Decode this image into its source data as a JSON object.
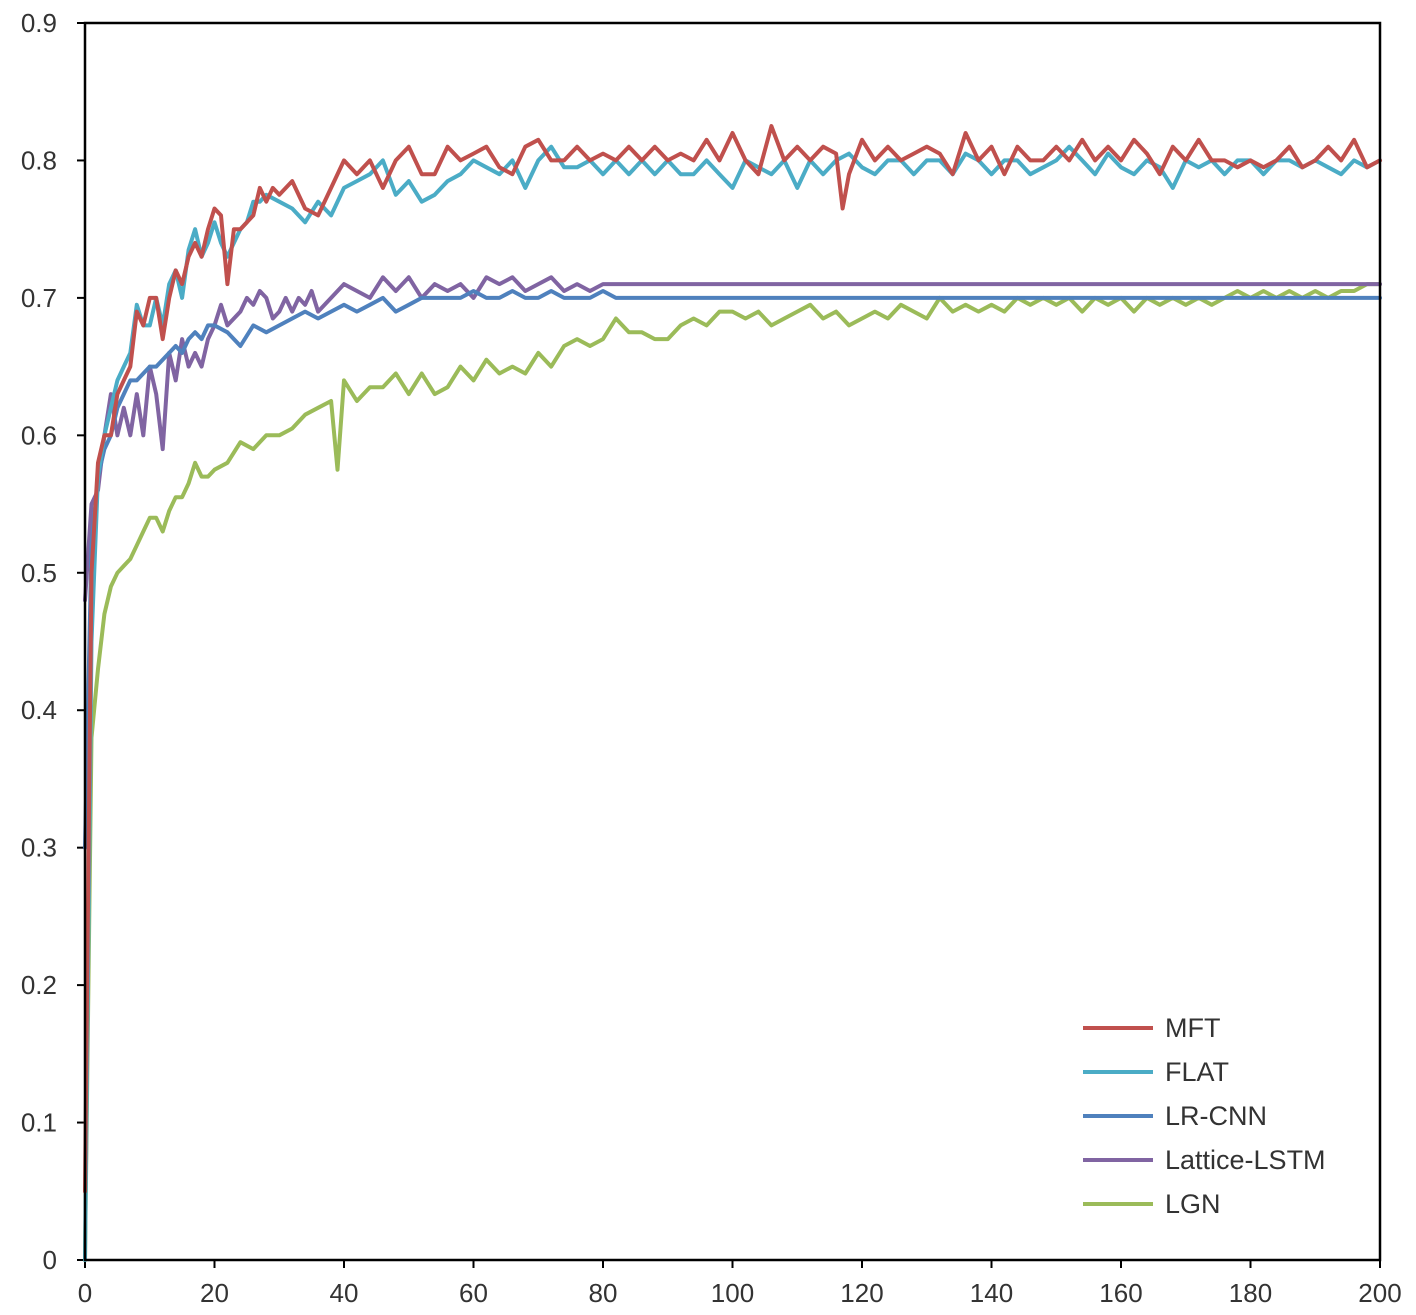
{
  "chart_data": {
    "type": "line",
    "title": "",
    "xlabel": "",
    "ylabel": "",
    "xlim": [
      0,
      200
    ],
    "ylim": [
      0,
      0.9
    ],
    "xticks": [
      "0",
      "20",
      "40",
      "60",
      "80",
      "100",
      "120",
      "140",
      "160",
      "180",
      "200"
    ],
    "yticks": [
      "0",
      "0.1",
      "0.2",
      "0.3",
      "0.4",
      "0.5",
      "0.6",
      "0.7",
      "0.8",
      "0.9"
    ],
    "grid": false,
    "legend_position": "bottom-right",
    "series": [
      {
        "name": "MFT",
        "color": "#c0504d",
        "x": [
          0,
          1,
          2,
          3,
          4,
          5,
          6,
          7,
          8,
          9,
          10,
          11,
          12,
          13,
          14,
          15,
          16,
          17,
          18,
          19,
          20,
          21,
          22,
          23,
          24,
          25,
          26,
          27,
          28,
          29,
          30,
          32,
          34,
          36,
          38,
          40,
          42,
          44,
          46,
          48,
          50,
          52,
          54,
          56,
          58,
          60,
          62,
          64,
          66,
          68,
          70,
          72,
          74,
          76,
          78,
          80,
          82,
          84,
          86,
          88,
          90,
          92,
          94,
          96,
          98,
          100,
          102,
          104,
          106,
          108,
          110,
          112,
          114,
          116,
          117,
          118,
          120,
          122,
          124,
          126,
          128,
          130,
          132,
          134,
          136,
          138,
          140,
          142,
          144,
          146,
          148,
          150,
          152,
          154,
          156,
          158,
          160,
          162,
          164,
          166,
          168,
          170,
          172,
          174,
          176,
          178,
          180,
          182,
          184,
          186,
          188,
          190,
          192,
          194,
          196,
          198,
          200
        ],
        "values": [
          0.05,
          0.5,
          0.58,
          0.6,
          0.6,
          0.63,
          0.64,
          0.65,
          0.69,
          0.68,
          0.7,
          0.7,
          0.67,
          0.7,
          0.72,
          0.71,
          0.73,
          0.74,
          0.73,
          0.75,
          0.765,
          0.76,
          0.71,
          0.75,
          0.75,
          0.755,
          0.76,
          0.78,
          0.77,
          0.78,
          0.775,
          0.785,
          0.765,
          0.76,
          0.78,
          0.8,
          0.79,
          0.8,
          0.78,
          0.8,
          0.81,
          0.79,
          0.79,
          0.81,
          0.8,
          0.805,
          0.81,
          0.795,
          0.79,
          0.81,
          0.815,
          0.8,
          0.8,
          0.81,
          0.8,
          0.805,
          0.8,
          0.81,
          0.8,
          0.81,
          0.8,
          0.805,
          0.8,
          0.815,
          0.8,
          0.82,
          0.8,
          0.79,
          0.825,
          0.8,
          0.81,
          0.8,
          0.81,
          0.805,
          0.765,
          0.79,
          0.815,
          0.8,
          0.81,
          0.8,
          0.805,
          0.81,
          0.805,
          0.79,
          0.82,
          0.8,
          0.81,
          0.79,
          0.81,
          0.8,
          0.8,
          0.81,
          0.8,
          0.815,
          0.8,
          0.81,
          0.8,
          0.815,
          0.805,
          0.79,
          0.81,
          0.8,
          0.815,
          0.8,
          0.8,
          0.795,
          0.8,
          0.795,
          0.8,
          0.81,
          0.795,
          0.8,
          0.81,
          0.8,
          0.815,
          0.795,
          0.8
        ]
      },
      {
        "name": "FLAT",
        "color": "#4bacc6",
        "x": [
          0,
          1,
          2,
          3,
          4,
          5,
          6,
          7,
          8,
          9,
          10,
          11,
          12,
          13,
          14,
          15,
          16,
          17,
          18,
          19,
          20,
          21,
          22,
          23,
          24,
          25,
          26,
          27,
          28,
          30,
          32,
          34,
          36,
          38,
          40,
          42,
          44,
          46,
          48,
          50,
          52,
          54,
          56,
          58,
          60,
          62,
          64,
          66,
          68,
          70,
          72,
          74,
          76,
          78,
          80,
          82,
          84,
          86,
          88,
          90,
          92,
          94,
          96,
          98,
          100,
          102,
          104,
          106,
          108,
          110,
          112,
          114,
          116,
          118,
          120,
          122,
          124,
          126,
          128,
          130,
          132,
          134,
          136,
          138,
          140,
          142,
          144,
          146,
          148,
          150,
          152,
          154,
          156,
          158,
          160,
          162,
          164,
          166,
          168,
          170,
          172,
          174,
          176,
          178,
          180,
          182,
          184,
          186,
          188,
          190,
          192,
          194,
          196,
          198,
          200
        ],
        "values": [
          0.0,
          0.45,
          0.57,
          0.6,
          0.62,
          0.64,
          0.65,
          0.66,
          0.695,
          0.68,
          0.68,
          0.7,
          0.68,
          0.71,
          0.72,
          0.7,
          0.735,
          0.75,
          0.73,
          0.74,
          0.755,
          0.74,
          0.73,
          0.74,
          0.75,
          0.755,
          0.77,
          0.77,
          0.775,
          0.77,
          0.765,
          0.755,
          0.77,
          0.76,
          0.78,
          0.785,
          0.79,
          0.8,
          0.775,
          0.785,
          0.77,
          0.775,
          0.785,
          0.79,
          0.8,
          0.795,
          0.79,
          0.8,
          0.78,
          0.8,
          0.81,
          0.795,
          0.795,
          0.8,
          0.79,
          0.8,
          0.79,
          0.8,
          0.79,
          0.8,
          0.79,
          0.79,
          0.8,
          0.79,
          0.78,
          0.8,
          0.795,
          0.79,
          0.8,
          0.78,
          0.8,
          0.79,
          0.8,
          0.805,
          0.795,
          0.79,
          0.8,
          0.8,
          0.79,
          0.8,
          0.8,
          0.79,
          0.805,
          0.8,
          0.79,
          0.8,
          0.8,
          0.79,
          0.795,
          0.8,
          0.81,
          0.8,
          0.79,
          0.805,
          0.795,
          0.79,
          0.8,
          0.795,
          0.78,
          0.8,
          0.795,
          0.8,
          0.79,
          0.8,
          0.8,
          0.79,
          0.8,
          0.8,
          0.795,
          0.8,
          0.795,
          0.79,
          0.8,
          0.795,
          0.8
        ]
      },
      {
        "name": "LR-CNN",
        "color": "#4f81bd",
        "x": [
          0,
          1,
          2,
          3,
          4,
          5,
          6,
          7,
          8,
          9,
          10,
          11,
          12,
          13,
          14,
          15,
          16,
          17,
          18,
          19,
          20,
          22,
          24,
          26,
          28,
          30,
          32,
          34,
          36,
          38,
          40,
          42,
          44,
          46,
          48,
          50,
          52,
          54,
          56,
          58,
          60,
          62,
          64,
          66,
          68,
          70,
          72,
          74,
          76,
          78,
          80,
          82,
          84,
          86,
          88,
          90,
          95,
          100,
          105,
          110,
          120,
          130,
          140,
          150,
          160,
          170,
          180,
          190,
          200
        ],
        "values": [
          0.3,
          0.52,
          0.57,
          0.59,
          0.6,
          0.62,
          0.63,
          0.64,
          0.64,
          0.645,
          0.65,
          0.65,
          0.655,
          0.66,
          0.665,
          0.66,
          0.67,
          0.675,
          0.67,
          0.68,
          0.68,
          0.675,
          0.665,
          0.68,
          0.675,
          0.68,
          0.685,
          0.69,
          0.685,
          0.69,
          0.695,
          0.69,
          0.695,
          0.7,
          0.69,
          0.695,
          0.7,
          0.7,
          0.7,
          0.7,
          0.705,
          0.7,
          0.7,
          0.705,
          0.7,
          0.7,
          0.705,
          0.7,
          0.7,
          0.7,
          0.705,
          0.7,
          0.7,
          0.7,
          0.7,
          0.7,
          0.7,
          0.7,
          0.7,
          0.7,
          0.7,
          0.7,
          0.7,
          0.7,
          0.7,
          0.7,
          0.7,
          0.7,
          0.7
        ]
      },
      {
        "name": "Lattice-LSTM",
        "color": "#8064a2",
        "x": [
          0,
          1,
          2,
          3,
          4,
          5,
          6,
          7,
          8,
          9,
          10,
          11,
          12,
          13,
          14,
          15,
          16,
          17,
          18,
          19,
          20,
          21,
          22,
          23,
          24,
          25,
          26,
          27,
          28,
          29,
          30,
          31,
          32,
          33,
          34,
          35,
          36,
          38,
          40,
          42,
          44,
          46,
          48,
          50,
          52,
          54,
          56,
          58,
          60,
          62,
          64,
          66,
          68,
          70,
          72,
          74,
          76,
          78,
          80,
          82,
          84,
          86,
          88,
          90,
          95,
          100,
          110,
          120,
          130,
          140,
          150,
          160,
          170,
          180,
          190,
          200
        ],
        "values": [
          0.48,
          0.55,
          0.56,
          0.6,
          0.63,
          0.6,
          0.62,
          0.6,
          0.63,
          0.6,
          0.65,
          0.63,
          0.59,
          0.66,
          0.64,
          0.67,
          0.65,
          0.66,
          0.65,
          0.67,
          0.68,
          0.695,
          0.68,
          0.685,
          0.69,
          0.7,
          0.695,
          0.705,
          0.7,
          0.685,
          0.69,
          0.7,
          0.69,
          0.7,
          0.695,
          0.705,
          0.69,
          0.7,
          0.71,
          0.705,
          0.7,
          0.715,
          0.705,
          0.715,
          0.7,
          0.71,
          0.705,
          0.71,
          0.7,
          0.715,
          0.71,
          0.715,
          0.705,
          0.71,
          0.715,
          0.705,
          0.71,
          0.705,
          0.71,
          0.71,
          0.71,
          0.71,
          0.71,
          0.71,
          0.71,
          0.71,
          0.71,
          0.71,
          0.71,
          0.71,
          0.71,
          0.71,
          0.71,
          0.71,
          0.71,
          0.71
        ]
      },
      {
        "name": "LGN",
        "color": "#9bbb59",
        "x": [
          0,
          1,
          2,
          3,
          4,
          5,
          6,
          7,
          8,
          9,
          10,
          11,
          12,
          13,
          14,
          15,
          16,
          17,
          18,
          19,
          20,
          22,
          24,
          26,
          28,
          30,
          32,
          34,
          36,
          38,
          39,
          40,
          42,
          44,
          46,
          48,
          50,
          52,
          54,
          56,
          58,
          60,
          62,
          64,
          66,
          68,
          70,
          72,
          74,
          76,
          78,
          80,
          82,
          84,
          86,
          88,
          90,
          92,
          94,
          96,
          98,
          100,
          102,
          104,
          106,
          108,
          110,
          112,
          114,
          116,
          118,
          120,
          122,
          124,
          126,
          128,
          130,
          132,
          134,
          136,
          138,
          140,
          142,
          144,
          146,
          148,
          150,
          152,
          154,
          156,
          158,
          160,
          162,
          164,
          166,
          168,
          170,
          172,
          174,
          176,
          178,
          180,
          182,
          184,
          186,
          188,
          190,
          192,
          194,
          196,
          198,
          200
        ],
        "values": [
          0.0,
          0.38,
          0.43,
          0.47,
          0.49,
          0.5,
          0.505,
          0.51,
          0.52,
          0.53,
          0.54,
          0.54,
          0.53,
          0.545,
          0.555,
          0.555,
          0.565,
          0.58,
          0.57,
          0.57,
          0.575,
          0.58,
          0.595,
          0.59,
          0.6,
          0.6,
          0.605,
          0.615,
          0.62,
          0.625,
          0.575,
          0.64,
          0.625,
          0.635,
          0.635,
          0.645,
          0.63,
          0.645,
          0.63,
          0.635,
          0.65,
          0.64,
          0.655,
          0.645,
          0.65,
          0.645,
          0.66,
          0.65,
          0.665,
          0.67,
          0.665,
          0.67,
          0.685,
          0.675,
          0.675,
          0.67,
          0.67,
          0.68,
          0.685,
          0.68,
          0.69,
          0.69,
          0.685,
          0.69,
          0.68,
          0.685,
          0.69,
          0.695,
          0.685,
          0.69,
          0.68,
          0.685,
          0.69,
          0.685,
          0.695,
          0.69,
          0.685,
          0.7,
          0.69,
          0.695,
          0.69,
          0.695,
          0.69,
          0.7,
          0.695,
          0.7,
          0.695,
          0.7,
          0.69,
          0.7,
          0.695,
          0.7,
          0.69,
          0.7,
          0.695,
          0.7,
          0.695,
          0.7,
          0.695,
          0.7,
          0.705,
          0.7,
          0.705,
          0.7,
          0.705,
          0.7,
          0.705,
          0.7,
          0.705,
          0.705,
          0.71,
          0.71
        ]
      }
    ]
  }
}
